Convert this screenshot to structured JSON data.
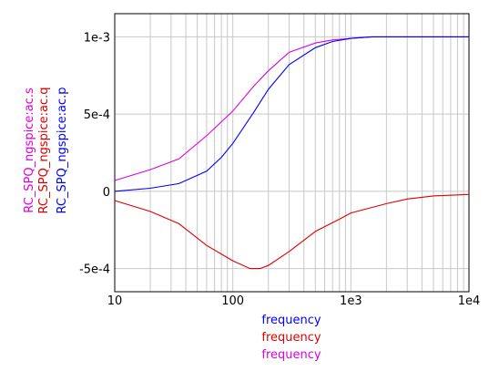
{
  "chart_data": {
    "type": "line",
    "x_scale": "log",
    "xlim": [
      10,
      10000
    ],
    "ylim": [
      -0.00065,
      0.00115
    ],
    "grid": true,
    "x_ticks": [
      {
        "value": 10,
        "label": "10"
      },
      {
        "value": 100,
        "label": "100"
      },
      {
        "value": 1000,
        "label": "1e3"
      },
      {
        "value": 10000,
        "label": "1e4"
      }
    ],
    "y_ticks": [
      {
        "value": 0.001,
        "label": "1e-3"
      },
      {
        "value": 0.0005,
        "label": "5e-4"
      },
      {
        "value": 0,
        "label": "0"
      },
      {
        "value": -0.0005,
        "label": "-5e-4"
      }
    ],
    "xlabels": [
      {
        "text": "frequency",
        "color": "#0000ff"
      },
      {
        "text": "frequency",
        "color": "#dd0000"
      },
      {
        "text": "frequency",
        "color": "#dd00dd"
      }
    ],
    "series": [
      {
        "name": "RC_SPQ_ngspice:ac.s",
        "color": "#dd00dd",
        "x": [
          10,
          20,
          35,
          60,
          100,
          150,
          200,
          300,
          500,
          700,
          1000,
          1500,
          2000,
          3000,
          5000,
          10000
        ],
        "y": [
          7e-05,
          0.00014,
          0.00021,
          0.00036,
          0.00052,
          0.00068,
          0.00078,
          0.0009,
          0.00096,
          0.00098,
          0.00099,
          0.001,
          0.001,
          0.001,
          0.001,
          0.001
        ]
      },
      {
        "name": "RC_SPQ_ngspice:ac.q",
        "color": "#dd0000",
        "x": [
          10,
          20,
          35,
          60,
          100,
          140,
          170,
          200,
          300,
          500,
          800,
          1000,
          2000,
          3000,
          5000,
          10000
        ],
        "y": [
          -6e-05,
          -0.00013,
          -0.00021,
          -0.00035,
          -0.00045,
          -0.0005,
          -0.0005,
          -0.00048,
          -0.00039,
          -0.00026,
          -0.00018,
          -0.00014,
          -8e-05,
          -5e-05,
          -3e-05,
          -2e-05
        ]
      },
      {
        "name": "RC_SPQ_ngspice:ac.p",
        "color": "#0000ff",
        "x": [
          10,
          20,
          35,
          60,
          80,
          100,
          150,
          200,
          300,
          500,
          700,
          1000,
          1500,
          2000,
          3000,
          5000,
          10000
        ],
        "y": [
          0.0,
          2e-05,
          5e-05,
          0.00013,
          0.00022,
          0.00031,
          0.00051,
          0.00066,
          0.00082,
          0.00093,
          0.00097,
          0.00099,
          0.001,
          0.001,
          0.001,
          0.001,
          0.001
        ]
      }
    ]
  }
}
